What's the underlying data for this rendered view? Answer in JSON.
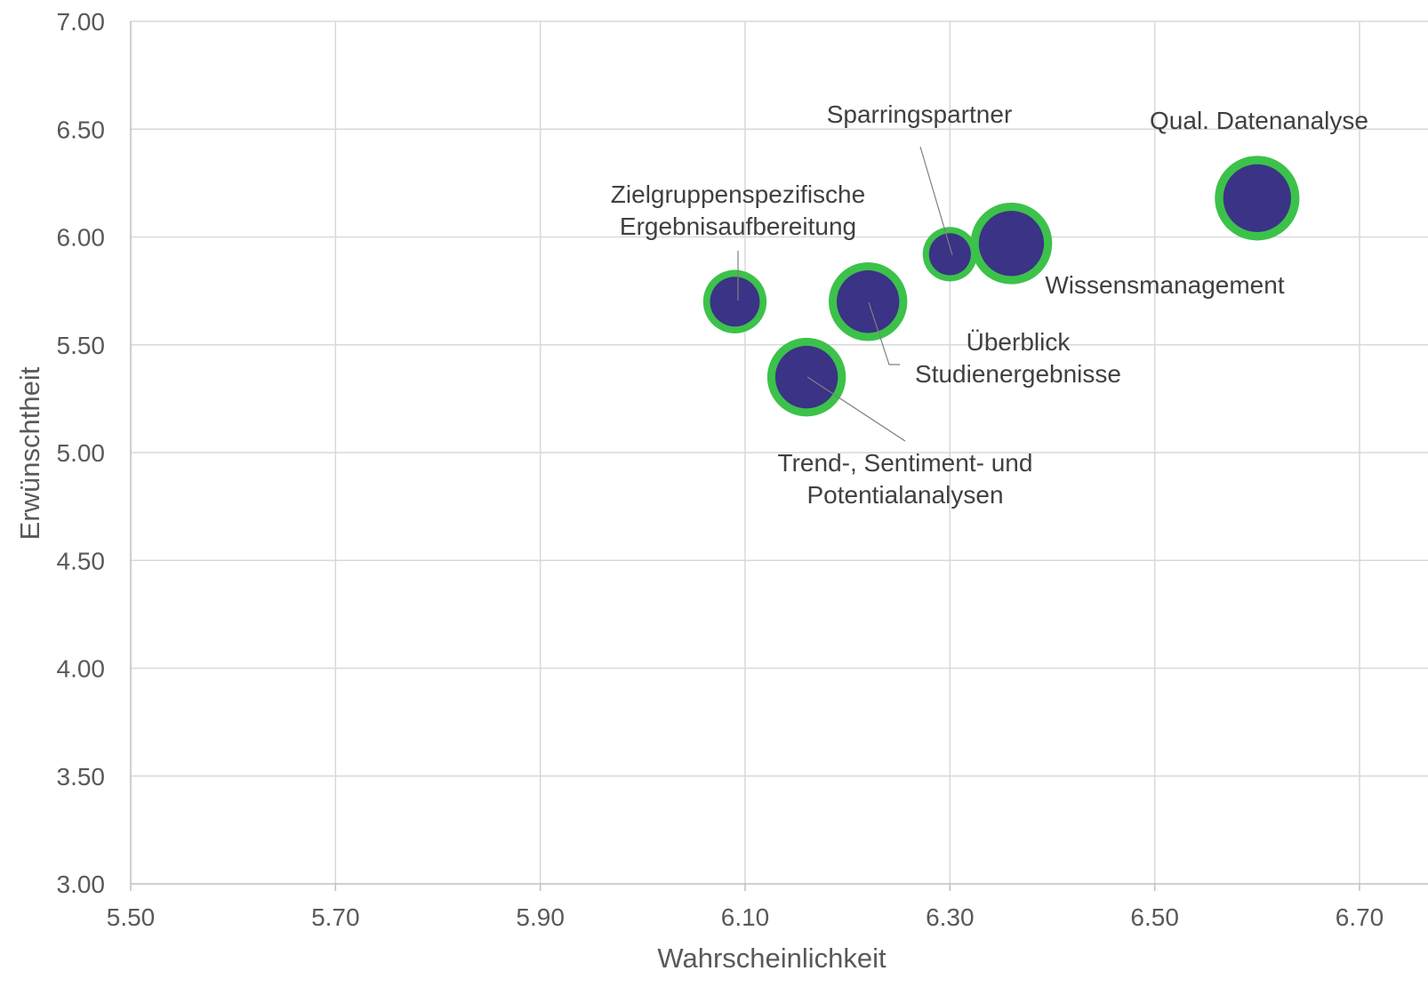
{
  "chart_data": {
    "type": "bubble",
    "title": "",
    "xlabel": "Wahrscheinlichkeit",
    "ylabel": "Erwünschtheit",
    "xlim": [
      5.5,
      6.75
    ],
    "ylim": [
      3.0,
      7.0
    ],
    "x_ticks": [
      "5.50",
      "5.70",
      "5.90",
      "6.10",
      "6.30",
      "6.50",
      "6.70"
    ],
    "y_ticks": [
      "3.00",
      "3.50",
      "4.00",
      "4.50",
      "5.00",
      "5.50",
      "6.00",
      "6.50",
      "7.00"
    ],
    "grid": true,
    "colors": {
      "bubble_fill": "#3a3386",
      "bubble_ring": "#3cc24a",
      "grid": "#d9d9d9",
      "leader": "#7f7f7f"
    },
    "points": [
      {
        "label": [
          "Zielgruppenspezifische",
          "Ergebnisaufbereitung"
        ],
        "x": 6.09,
        "y": 5.7,
        "size": 0.55
      },
      {
        "label": [
          "Trend-, Sentiment- und",
          "Potentialanalysen"
        ],
        "x": 6.16,
        "y": 5.35,
        "size": 0.8
      },
      {
        "label": [
          "Überblick",
          "Studienergebnisse"
        ],
        "x": 6.22,
        "y": 5.7,
        "size": 0.8
      },
      {
        "label": [
          "Sparringspartner"
        ],
        "x": 6.3,
        "y": 5.92,
        "size": 0.4
      },
      {
        "label": [
          "Wissensmanagement"
        ],
        "x": 6.36,
        "y": 5.97,
        "size": 0.85
      },
      {
        "label": [
          "Qual. Datenanalyse"
        ],
        "x": 6.6,
        "y": 6.18,
        "size": 0.9
      }
    ]
  }
}
